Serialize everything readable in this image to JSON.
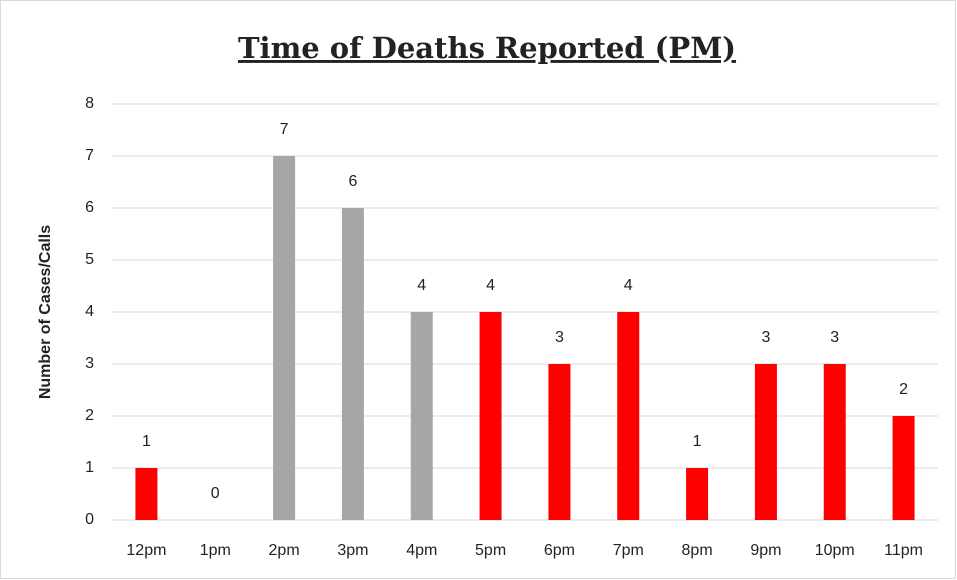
{
  "chart_data": {
    "type": "bar",
    "title": "Time of Deaths Reported (PM)",
    "y_label": "Number of Cases/Calls",
    "categories": [
      "12pm",
      "1pm",
      "2pm",
      "3pm",
      "4pm",
      "5pm",
      "6pm",
      "7pm",
      "8pm",
      "9pm",
      "10pm",
      "11pm"
    ],
    "values": [
      1,
      0,
      7,
      6,
      4,
      4,
      3,
      4,
      1,
      3,
      3,
      2
    ],
    "colors": [
      "#ff0000",
      "#ff0000",
      "#a6a6a6",
      "#a6a6a6",
      "#a6a6a6",
      "#ff0000",
      "#ff0000",
      "#ff0000",
      "#ff0000",
      "#ff0000",
      "#ff0000",
      "#ff0000"
    ],
    "ylim": [
      0,
      8
    ],
    "yticks": [
      0,
      1,
      2,
      3,
      4,
      5,
      6,
      7,
      8
    ],
    "grid": true
  }
}
